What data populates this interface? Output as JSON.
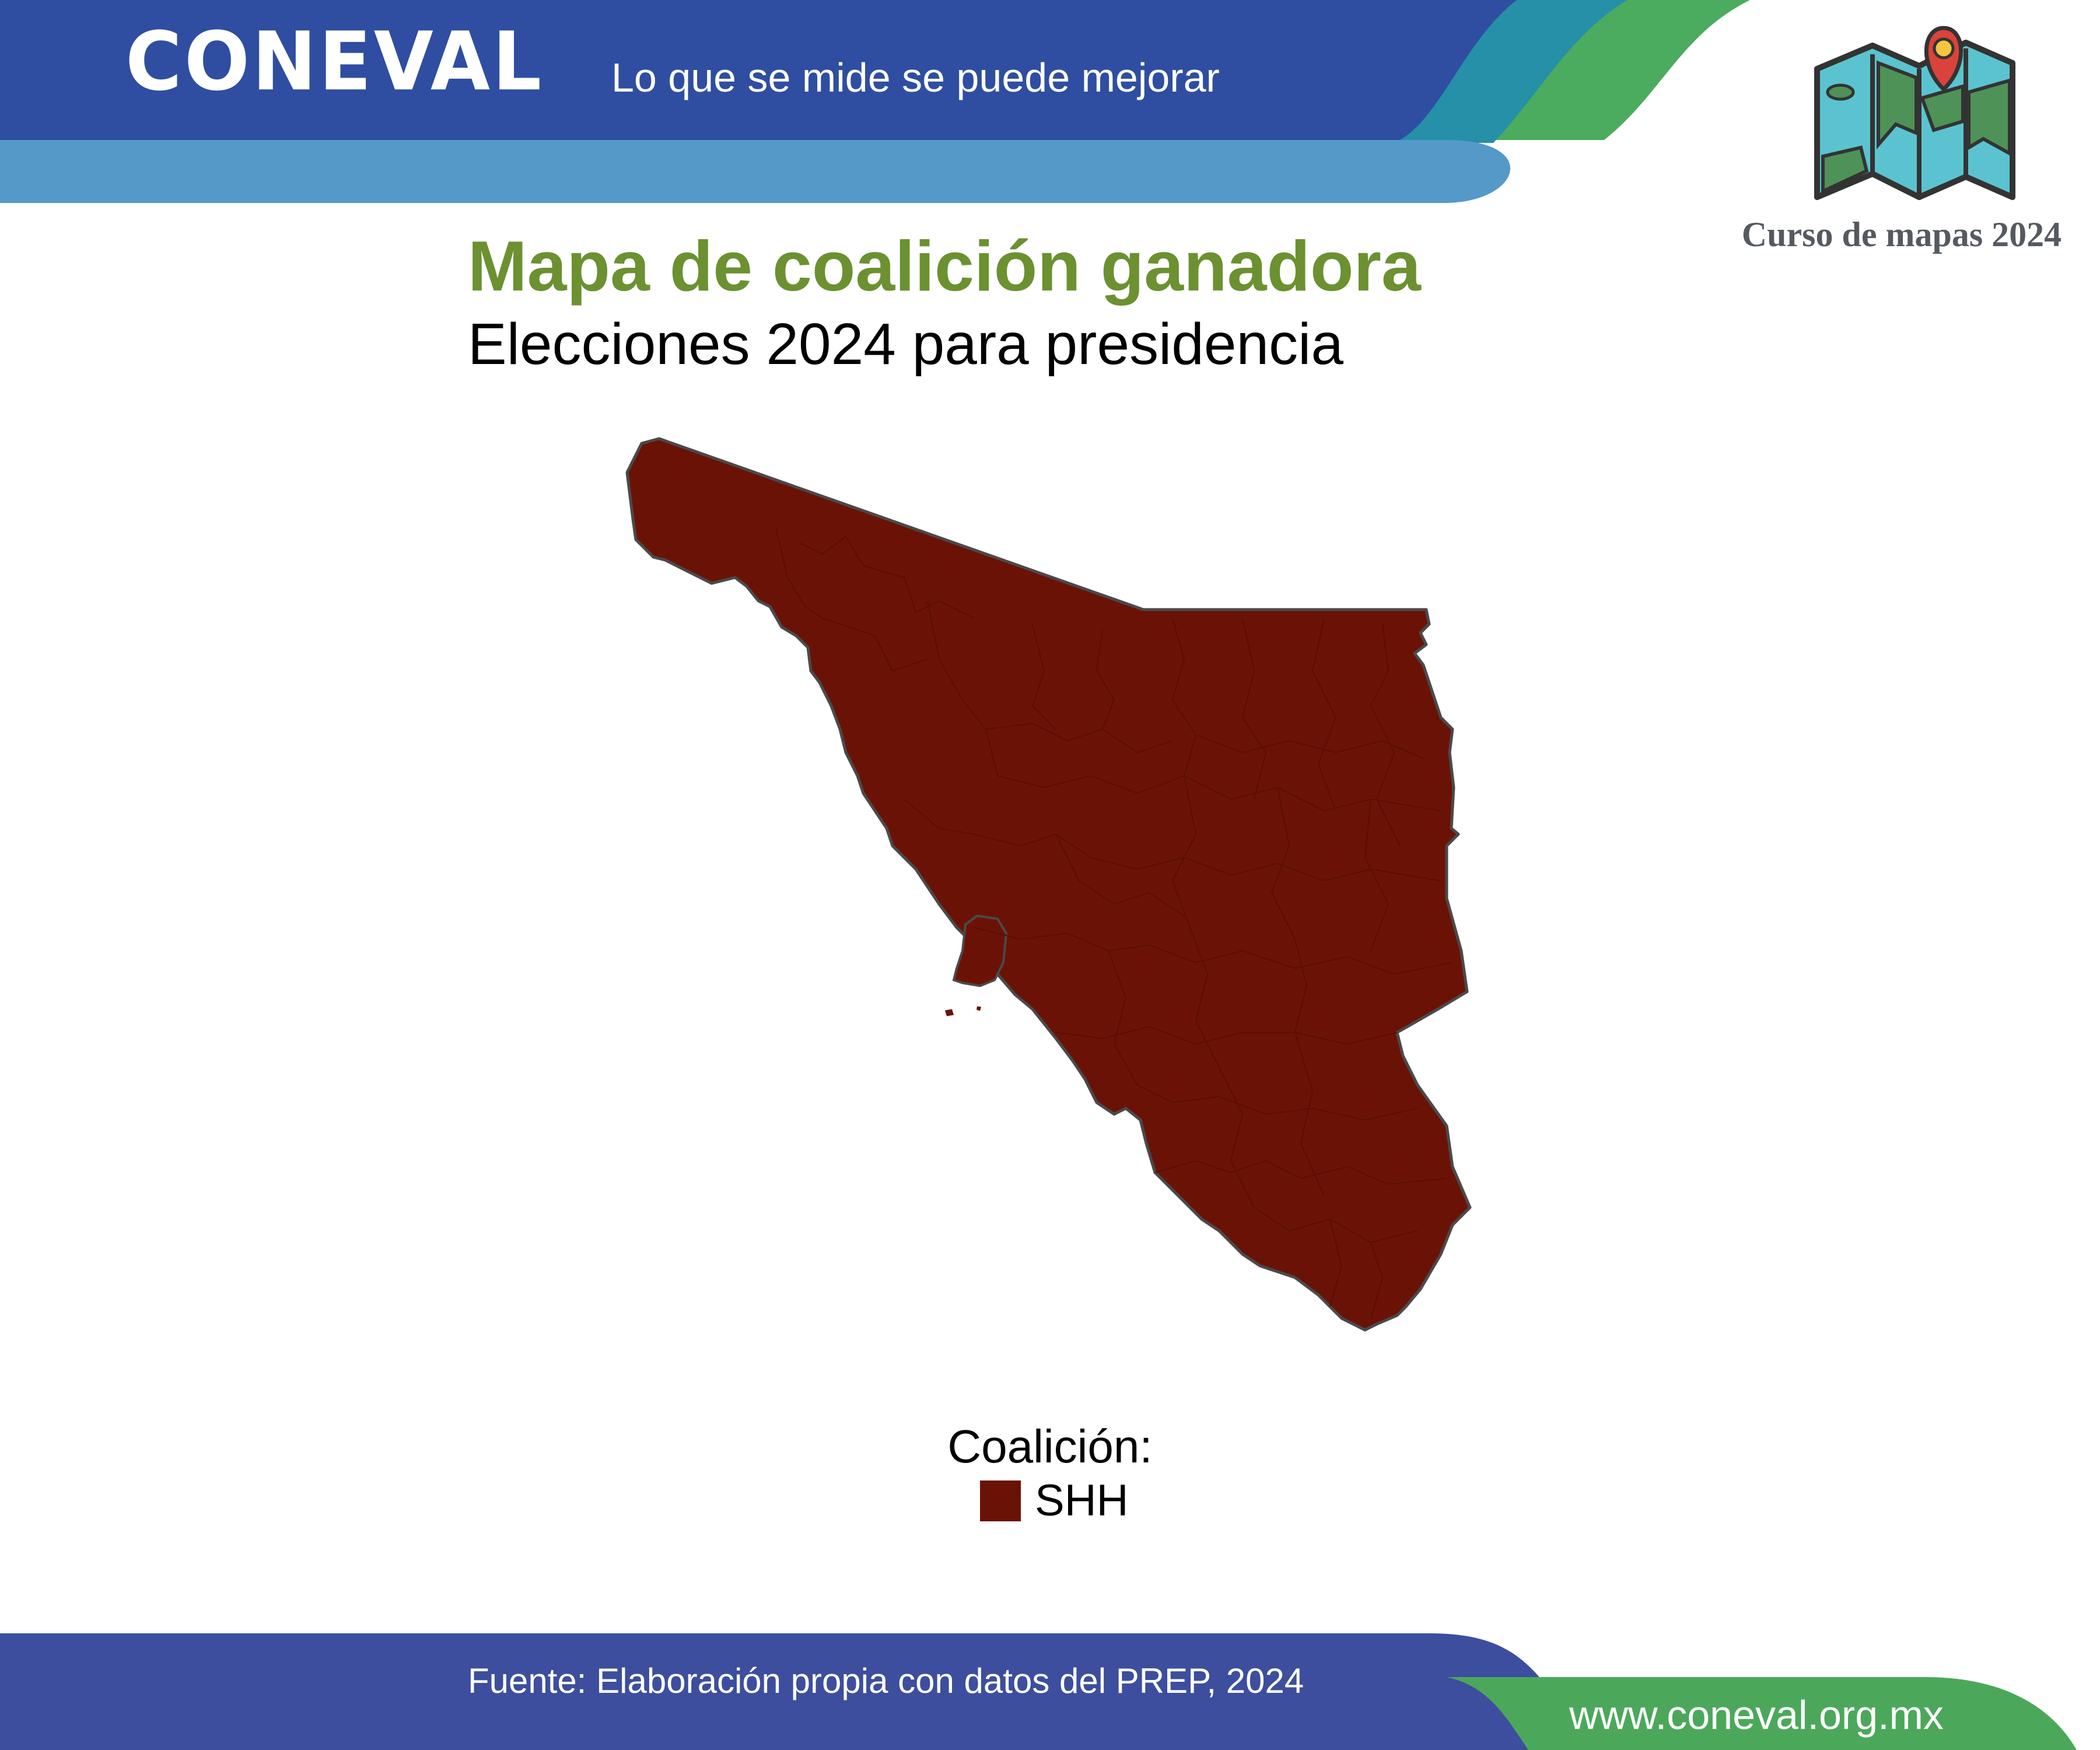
{
  "header": {
    "logo_text": "CONEVAL",
    "slogan": "Lo que se mide se puede mejorar",
    "course_caption": "Curso de mapas 2024",
    "course_icon": "folded-map-pin-icon"
  },
  "title": "Mapa de coalición ganadora",
  "subtitle": "Elecciones 2024 para presidencia",
  "map": {
    "fill_color": "#6b1206",
    "border_color": "#4a4a4a"
  },
  "legend": {
    "title": "Coalición:",
    "items": [
      {
        "label": "SHH",
        "color": "#6b1206"
      }
    ]
  },
  "footer": {
    "source": "Fuente: Elaboración propia con datos del PREP, 2024",
    "url": "www.coneval.org.mx"
  },
  "colors": {
    "header_blue": "#2f4ea1",
    "header_light_blue": "#5599c8",
    "header_teal": "#2590a8",
    "header_green": "#4bab5e",
    "title_green": "#6b9131",
    "footer_blue": "#3d4e9e",
    "footer_green": "#4ba85a"
  }
}
